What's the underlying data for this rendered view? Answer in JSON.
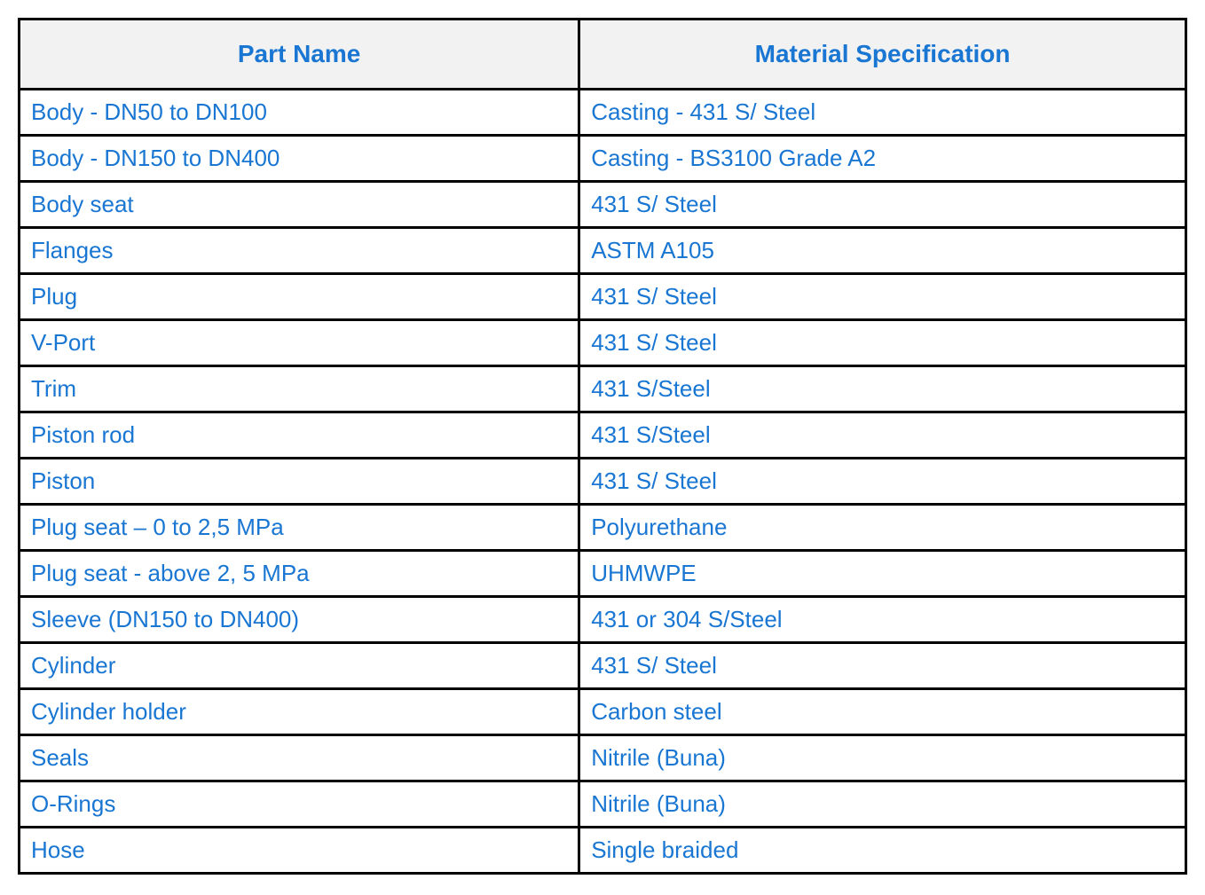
{
  "table": {
    "header_bg": "#f2f2f2",
    "text_color": "#1976d2",
    "border_color": "#000000",
    "header_fontsize": 28,
    "cell_fontsize": 26,
    "columns": [
      {
        "label": "Part Name",
        "width": "48%"
      },
      {
        "label": "Material Specification",
        "width": "52%"
      }
    ],
    "rows": [
      {
        "part": "Body - DN50 to DN100",
        "material": "Casting - 431 S/ Steel"
      },
      {
        "part": "Body - DN150 to DN400",
        "material": "Casting - BS3100 Grade A2"
      },
      {
        "part": "Body seat",
        "material": "431 S/ Steel"
      },
      {
        "part": "Flanges",
        "material": "ASTM A105"
      },
      {
        "part": "Plug",
        "material": "431 S/ Steel"
      },
      {
        "part": "V-Port",
        "material": "431 S/ Steel"
      },
      {
        "part": "Trim",
        "material": "431 S/Steel"
      },
      {
        "part": "Piston rod",
        "material": "431 S/Steel"
      },
      {
        "part": "Piston",
        "material": "431 S/ Steel"
      },
      {
        "part": "Plug seat – 0 to 2,5 MPa",
        "material": "Polyurethane"
      },
      {
        "part": "Plug seat - above 2, 5 MPa",
        "material": "UHMWPE"
      },
      {
        "part": "Sleeve (DN150 to DN400)",
        "material": "431 or 304 S/Steel"
      },
      {
        "part": "Cylinder",
        "material": "431 S/ Steel"
      },
      {
        "part": "Cylinder holder",
        "material": "Carbon steel"
      },
      {
        "part": "Seals",
        "material": "Nitrile (Buna)"
      },
      {
        "part": "O-Rings",
        "material": "Nitrile (Buna)"
      },
      {
        "part": "Hose",
        "material": "Single braided"
      }
    ]
  }
}
